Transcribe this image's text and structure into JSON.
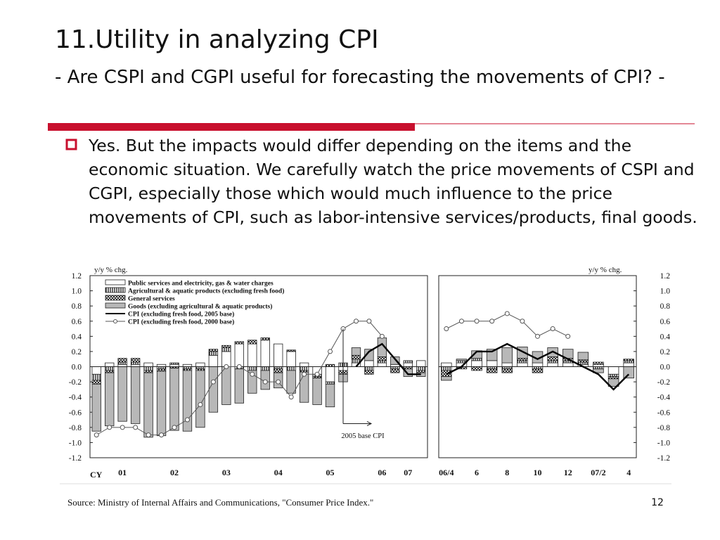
{
  "slide": {
    "title": "11.Utility in analyzing CPI",
    "subtitle": "- Are CSPI and CGPI useful for forecasting the movements of CPI? -",
    "bullet": "Yes. But the impacts would differ depending on the items and the economic situation. We carefully watch the price movements of CSPI and CGPI, especially those which would much influence to the price movements of CPI, such as labor-intensive services/products, final goods.",
    "source": "Source: Ministry of Internal Affairs and Communications, \"Consumer Price Index.\"",
    "page": "12"
  },
  "chart_data": [
    {
      "type": "bar",
      "stacked": true,
      "y_label": "y/y % chg.",
      "x_label": "CY",
      "annotation": "2005 base CPI",
      "ylim": [
        -1.2,
        1.2
      ],
      "yticks": [
        1.2,
        {
          "value": 1,
          "label": "1.0"
        },
        0.8,
        0.6,
        0.4,
        0.2,
        {
          "value": 0,
          "label": "0.0"
        },
        -0.2,
        -0.4,
        -0.6,
        -0.8,
        {
          "value": -1,
          "label": "-1.0"
        },
        -1.2
      ],
      "categories": [
        null,
        null,
        "01",
        null,
        null,
        null,
        "02",
        null,
        null,
        null,
        "03",
        null,
        null,
        null,
        "04",
        null,
        null,
        null,
        "05",
        null,
        null,
        null,
        "06",
        null,
        "07",
        null
      ],
      "series": [
        {
          "name": "Public services and electricity, gas & water charges",
          "kind": "bar",
          "color": "#ffffff",
          "values": [
            -0.1,
            0.05,
            0.03,
            0.03,
            0.05,
            0.03,
            0.03,
            0.03,
            0.05,
            0.15,
            0.2,
            0.3,
            0.3,
            0.35,
            0.3,
            0.2,
            0.05,
            -0.1,
            -0.2,
            -0.05,
            0.05,
            0.08,
            0.05,
            0.03,
            0.05,
            0.08
          ]
        },
        {
          "name": "Agricultural & aquatic products (excluding fresh food)",
          "kind": "bar",
          "pattern": "vertical",
          "color": "#000000",
          "values": [
            -0.08,
            -0.05,
            0.03,
            0.03,
            -0.05,
            -0.03,
            0.02,
            -0.03,
            -0.03,
            0.05,
            0.05,
            -0.03,
            -0.05,
            -0.05,
            -0.03,
            -0.05,
            -0.05,
            -0.03,
            -0.03,
            0.05,
            0.05,
            -0.05,
            0.03,
            -0.03,
            0.03,
            -0.05
          ]
        },
        {
          "name": "General services",
          "kind": "bar",
          "pattern": "hatch",
          "color": "#000000",
          "values": [
            -0.05,
            -0.03,
            0.05,
            0.05,
            -0.03,
            -0.03,
            -0.02,
            -0.02,
            -0.02,
            0.03,
            0.03,
            0.03,
            0.05,
            0.03,
            -0.05,
            0.02,
            -0.02,
            -0.02,
            0.03,
            -0.05,
            0.05,
            -0.05,
            0.05,
            -0.05,
            -0.03,
            -0.03
          ]
        },
        {
          "name": "Goods (excluding agricultural & aquatic products)",
          "kind": "bar",
          "color": "#b8b8b8",
          "values": [
            -0.62,
            -0.7,
            -0.72,
            -0.75,
            -0.85,
            -0.85,
            -0.82,
            -0.8,
            -0.75,
            -0.6,
            -0.5,
            -0.45,
            -0.3,
            -0.25,
            -0.2,
            -0.3,
            -0.4,
            -0.35,
            -0.3,
            -0.1,
            0.1,
            0.15,
            0.25,
            0.1,
            -0.1,
            -0.05
          ]
        },
        {
          "name": "CPI (excluding fresh food, 2005 base)",
          "kind": "line",
          "color": "#000000",
          "values": [
            null,
            null,
            null,
            null,
            null,
            null,
            null,
            null,
            null,
            null,
            null,
            null,
            null,
            null,
            null,
            null,
            null,
            null,
            null,
            null,
            0.0,
            0.2,
            0.3,
            0.1,
            -0.1,
            -0.1
          ]
        },
        {
          "name": "CPI (excluding fresh food, 2000 base)",
          "kind": "line",
          "marker": "circle",
          "color": "#555555",
          "values": [
            -0.9,
            -0.8,
            -0.8,
            -0.8,
            -0.9,
            -0.9,
            -0.8,
            -0.7,
            -0.5,
            -0.2,
            0,
            0,
            -0.1,
            -0.2,
            -0.2,
            -0.4,
            -0.1,
            -0.1,
            0.2,
            0.5,
            0.6,
            0.6,
            0.4,
            null,
            null,
            null
          ]
        }
      ]
    },
    {
      "type": "bar",
      "stacked": true,
      "y_label": "y/y % chg.",
      "ylim": [
        -1.2,
        1.2
      ],
      "yticks": [
        1.2,
        {
          "value": 1,
          "label": "1.0"
        },
        0.8,
        0.6,
        0.4,
        0.2,
        {
          "value": 0,
          "label": "0.0"
        },
        -0.2,
        -0.4,
        -0.6,
        -0.8,
        {
          "value": -1,
          "label": "-1.0"
        },
        -1.2
      ],
      "categories": [
        "06/4",
        null,
        "6",
        null,
        "8",
        null,
        "10",
        null,
        "12",
        null,
        "07/2",
        null,
        "4"
      ],
      "series": [
        {
          "kind": "bar",
          "color": "#ffffff",
          "values": [
            0.05,
            0.05,
            0.08,
            0.08,
            0.05,
            0.05,
            0.05,
            0.05,
            0.05,
            0.03,
            0.03,
            -0.1,
            0.05
          ]
        },
        {
          "kind": "bar",
          "pattern": "vertical",
          "color": "#000000",
          "values": [
            -0.05,
            0.03,
            0.03,
            -0.03,
            -0.03,
            0.03,
            -0.03,
            0.03,
            0.03,
            0.03,
            -0.03,
            -0.03,
            0.03
          ]
        },
        {
          "kind": "bar",
          "pattern": "hatch",
          "color": "#000000",
          "values": [
            -0.08,
            -0.03,
            -0.05,
            -0.05,
            -0.05,
            0.03,
            -0.05,
            0.05,
            0.03,
            0.03,
            0.03,
            -0.03,
            0.02
          ]
        },
        {
          "kind": "bar",
          "color": "#b8b8b8",
          "values": [
            -0.05,
            0.02,
            0.1,
            0.15,
            0.2,
            0.15,
            0.15,
            0.12,
            0.12,
            0.1,
            -0.05,
            -0.1,
            -0.15
          ]
        },
        {
          "kind": "line",
          "color": "#000000",
          "values": [
            -0.1,
            0.0,
            0.2,
            0.2,
            0.3,
            0.2,
            0.1,
            0.2,
            0.1,
            0.0,
            -0.1,
            -0.3,
            -0.1
          ]
        },
        {
          "kind": "line",
          "marker": "circle",
          "color": "#555555",
          "values": [
            0.5,
            0.6,
            0.6,
            0.6,
            0.7,
            0.6,
            0.4,
            0.5,
            0.4,
            null,
            null,
            null,
            null
          ]
        }
      ]
    }
  ]
}
